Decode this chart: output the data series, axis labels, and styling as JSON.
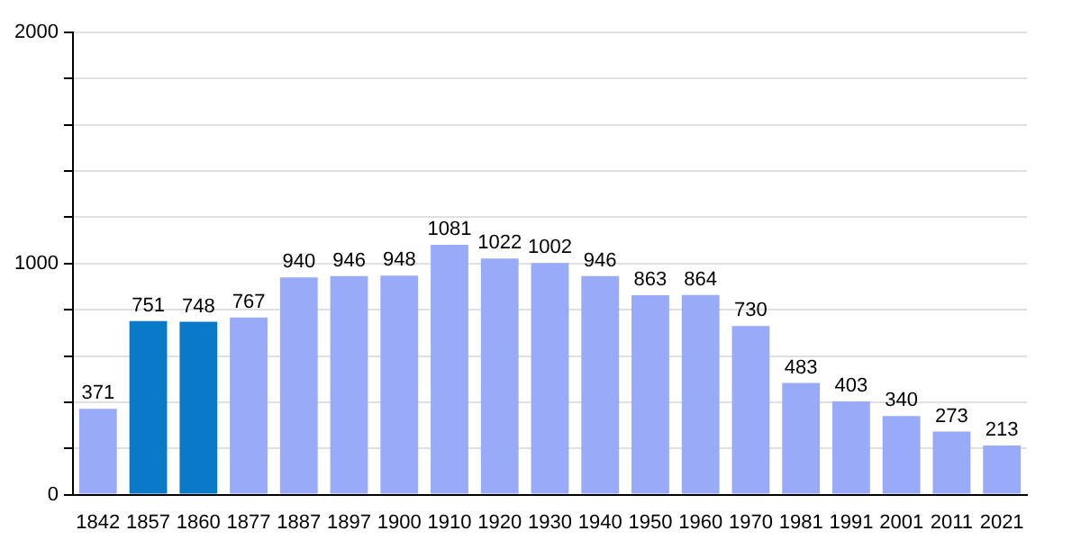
{
  "chart_data": {
    "type": "bar",
    "categories": [
      "1842",
      "1857",
      "1860",
      "1877",
      "1887",
      "1897",
      "1900",
      "1910",
      "1920",
      "1930",
      "1940",
      "1950",
      "1960",
      "1970",
      "1981",
      "1991",
      "2001",
      "2011",
      "2021"
    ],
    "values": [
      371,
      751,
      748,
      767,
      940,
      946,
      948,
      1081,
      1022,
      1002,
      946,
      863,
      864,
      730,
      483,
      403,
      340,
      273,
      213
    ],
    "colors": [
      "#99aaf8",
      "#0a79c8",
      "#0a79c8",
      "#99aaf8",
      "#99aaf8",
      "#99aaf8",
      "#99aaf8",
      "#99aaf8",
      "#99aaf8",
      "#99aaf8",
      "#99aaf8",
      "#99aaf8",
      "#99aaf8",
      "#99aaf8",
      "#99aaf8",
      "#99aaf8",
      "#99aaf8",
      "#99aaf8",
      "#99aaf8"
    ],
    "ylim": [
      0,
      2000
    ],
    "yticks": [
      0,
      {
        "value": 200,
        "label": null
      },
      {
        "value": 400,
        "label": null
      },
      {
        "value": 600,
        "label": null
      },
      {
        "value": 800,
        "label": null
      },
      1000,
      {
        "value": 1200,
        "label": null
      },
      {
        "value": 1400,
        "label": null
      },
      {
        "value": 1600,
        "label": null
      },
      {
        "value": 1800,
        "label": null
      },
      2000
    ],
    "grid": true,
    "data_labels": true
  }
}
